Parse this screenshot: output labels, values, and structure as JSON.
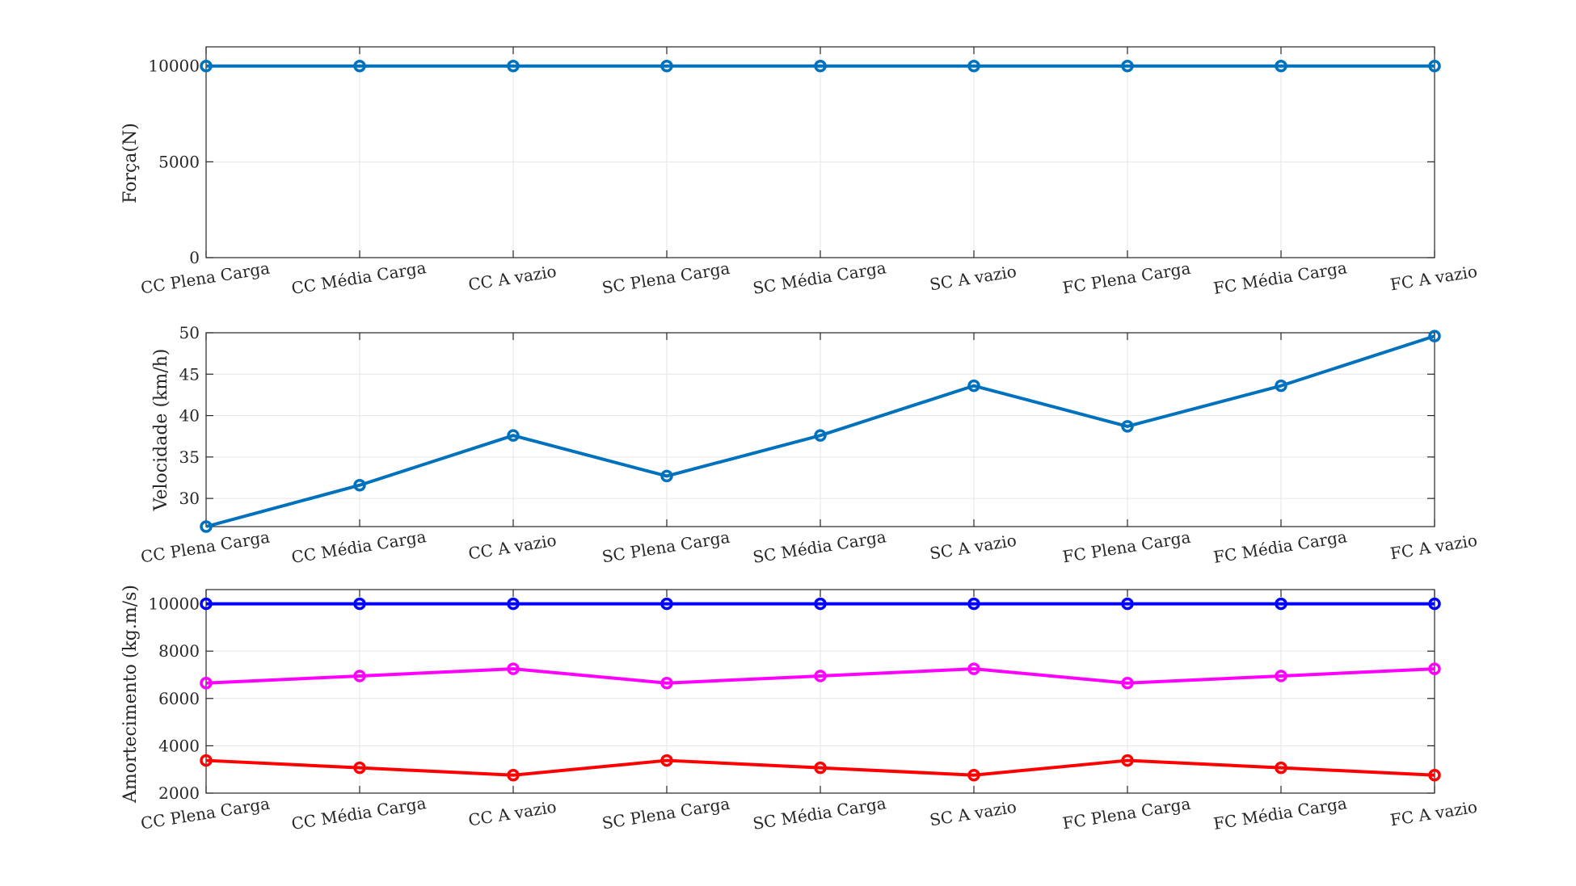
{
  "chart_data": [
    {
      "type": "line",
      "title": "",
      "xlabel": "",
      "ylabel": "Força(N)",
      "categories": [
        "CC Plena Carga",
        "CC Média Carga",
        "CC A vazio",
        "SC Plena Carga",
        "SC Média Carga",
        "SC A vazio",
        "FC Plena Carga",
        "FC Média Carga",
        "FC A vazio"
      ],
      "ylim": [
        0,
        11000
      ],
      "yticks": [
        0,
        5000,
        10000
      ],
      "grid": true,
      "series": [
        {
          "color": "#0072BD",
          "values": [
            10000,
            10000,
            10000,
            10000,
            10000,
            10000,
            10000,
            10000,
            10000
          ]
        }
      ]
    },
    {
      "type": "line",
      "title": "",
      "xlabel": "",
      "ylabel": "Velocidade (km/h)",
      "categories": [
        "CC Plena Carga",
        "CC Média Carga",
        "CC A vazio",
        "SC Plena Carga",
        "SC Média Carga",
        "SC A vazio",
        "FC Plena Carga",
        "FC Média Carga",
        "FC A vazio"
      ],
      "ylim": [
        26.6,
        50.0
      ],
      "yticks": [
        30,
        35,
        40,
        45,
        50
      ],
      "grid": true,
      "series": [
        {
          "color": "#0072BD",
          "values": [
            26.6,
            31.6,
            37.6,
            32.7,
            37.6,
            43.6,
            38.7,
            43.6,
            49.6
          ]
        }
      ]
    },
    {
      "type": "line",
      "title": "",
      "xlabel": "",
      "ylabel": "Amortecimento (kg.m/s)",
      "categories": [
        "CC Plena Carga",
        "CC Média Carga",
        "CC A vazio",
        "SC Plena Carga",
        "SC Média Carga",
        "SC A vazio",
        "FC Plena Carga",
        "FC Média Carga",
        "FC A vazio"
      ],
      "ylim": [
        2000,
        10600
      ],
      "yticks": [
        2000,
        4000,
        6000,
        8000,
        10000
      ],
      "grid": true,
      "series": [
        {
          "color": "#0000FF",
          "values": [
            10000,
            10000,
            10000,
            10000,
            10000,
            10000,
            10000,
            10000,
            10000
          ]
        },
        {
          "color": "#FF00FF",
          "values": [
            6650,
            6950,
            7250,
            6650,
            6950,
            7250,
            6650,
            6950,
            7250
          ]
        },
        {
          "color": "#FF0000",
          "values": [
            3380,
            3070,
            2760,
            3380,
            3070,
            2760,
            3380,
            3070,
            2760
          ]
        }
      ]
    }
  ]
}
